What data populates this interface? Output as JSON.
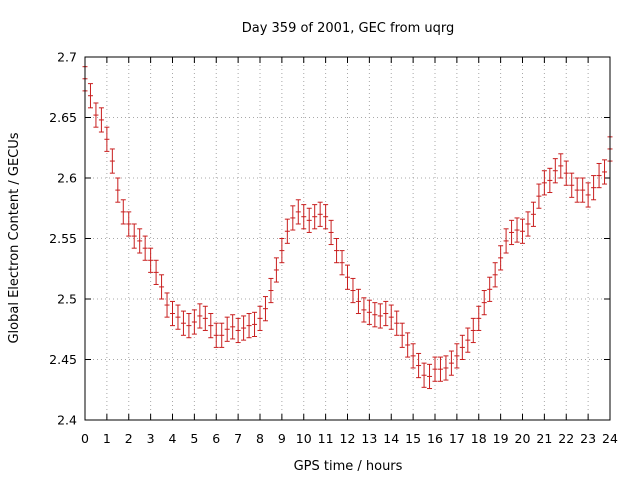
{
  "chart_data": {
    "type": "scatter",
    "title": "Day 359 of 2001, GEC from uqrg",
    "xlabel": "GPS time / hours",
    "ylabel": "Global Electron Content / GECUs",
    "xlim": [
      0,
      24
    ],
    "ylim": [
      2.4,
      2.7
    ],
    "xticks": [
      "0",
      "1",
      "2",
      "3",
      "4",
      "5",
      "6",
      "7",
      "8",
      "9",
      "10",
      "11",
      "12",
      "13",
      "14",
      "15",
      "16",
      "17",
      "18",
      "19",
      "20",
      "21",
      "22",
      "23",
      "24"
    ],
    "yticks": [
      "2.4",
      "2.45",
      "2.5",
      "2.55",
      "2.6",
      "2.65",
      "2.7"
    ],
    "grid": true,
    "color": "#c81e1e",
    "error_bar": 0.01,
    "series": [
      {
        "x": [
          0,
          0.25,
          0.5,
          0.75,
          1,
          1.25,
          1.5,
          1.75,
          2,
          2.25,
          2.5,
          2.75,
          3,
          3.25,
          3.5,
          3.75,
          4,
          4.25,
          4.5,
          4.75,
          5,
          5.25,
          5.5,
          5.75,
          6,
          6.25,
          6.5,
          6.75,
          7,
          7.25,
          7.5,
          7.75,
          8,
          8.25,
          8.5,
          8.75,
          9,
          9.25,
          9.5,
          9.75,
          10,
          10.25,
          10.5,
          10.75,
          11,
          11.25,
          11.5,
          11.75,
          12,
          12.25,
          12.5,
          12.75,
          13,
          13.25,
          13.5,
          13.75,
          14,
          14.25,
          14.5,
          14.75,
          15,
          15.25,
          15.5,
          15.75,
          16,
          16.25,
          16.5,
          16.75,
          17,
          17.25,
          17.5,
          17.75,
          18,
          18.25,
          18.5,
          18.75,
          19,
          19.25,
          19.5,
          19.75,
          20,
          20.25,
          20.5,
          20.75,
          21,
          21.25,
          21.5,
          21.75,
          22,
          22.25,
          22.5,
          22.75,
          23,
          23.25,
          23.5,
          23.75,
          24
        ],
        "y": [
          2.682,
          2.668,
          2.652,
          2.648,
          2.632,
          2.614,
          2.59,
          2.572,
          2.562,
          2.552,
          2.548,
          2.542,
          2.532,
          2.522,
          2.51,
          2.495,
          2.488,
          2.485,
          2.48,
          2.478,
          2.481,
          2.486,
          2.484,
          2.478,
          2.47,
          2.47,
          2.475,
          2.477,
          2.474,
          2.476,
          2.478,
          2.479,
          2.484,
          2.492,
          2.507,
          2.524,
          2.54,
          2.556,
          2.567,
          2.572,
          2.568,
          2.565,
          2.568,
          2.57,
          2.568,
          2.555,
          2.54,
          2.53,
          2.518,
          2.507,
          2.498,
          2.491,
          2.489,
          2.487,
          2.486,
          2.488,
          2.485,
          2.48,
          2.47,
          2.462,
          2.453,
          2.445,
          2.437,
          2.436,
          2.442,
          2.442,
          2.443,
          2.447,
          2.453,
          2.46,
          2.466,
          2.474,
          2.484,
          2.497,
          2.508,
          2.52,
          2.534,
          2.548,
          2.555,
          2.557,
          2.556,
          2.562,
          2.57,
          2.585,
          2.596,
          2.598,
          2.606,
          2.61,
          2.604,
          2.594,
          2.59,
          2.59,
          2.586,
          2.592,
          2.602,
          2.605,
          2.624
        ]
      }
    ]
  }
}
